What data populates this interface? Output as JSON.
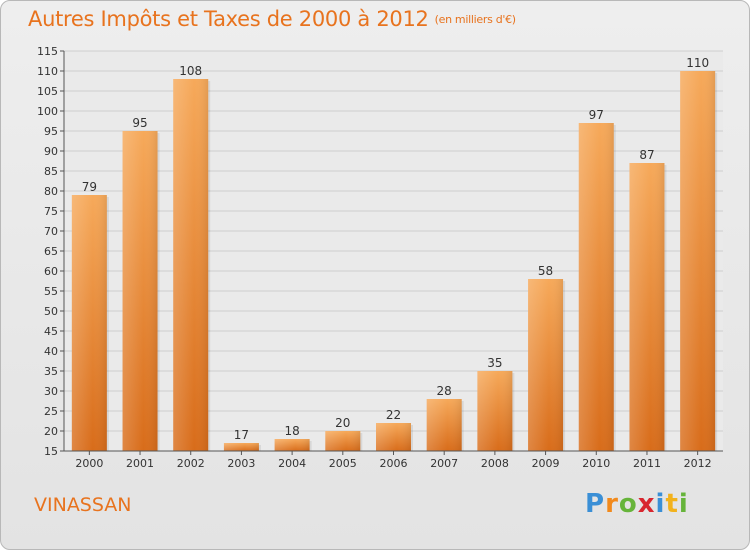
{
  "title": "Autres Impôts et Taxes de 2000 à 2012",
  "unit_note": "(en milliers d'€)",
  "commune": "VINASSAN",
  "logo": {
    "letters": [
      "P",
      "r",
      "o",
      "x",
      "i",
      "t",
      "i"
    ],
    "colors": [
      "#3a8fd6",
      "#f28a1c",
      "#66b43a",
      "#d8262f",
      "#3a8fd6",
      "#f2b21c",
      "#66b43a"
    ]
  },
  "colors": {
    "accent": "#e8731e",
    "bar_top": "#f6a95a",
    "bar_bottom": "#d86c1a"
  },
  "chart_data": {
    "type": "bar",
    "categories": [
      "2000",
      "2001",
      "2002",
      "2003",
      "2004",
      "2005",
      "2006",
      "2007",
      "2008",
      "2009",
      "2010",
      "2011",
      "2012"
    ],
    "values": [
      79,
      95,
      108,
      17,
      18,
      20,
      22,
      28,
      35,
      58,
      97,
      87,
      110
    ],
    "ylim": [
      15,
      115
    ],
    "yticks": [
      "15",
      "20",
      "25",
      "30",
      "35",
      "40",
      "45",
      "50",
      "55",
      "60",
      "65",
      "70",
      "75",
      "80",
      "85",
      "90",
      "95",
      "100",
      "105",
      "110",
      "115"
    ],
    "grid": true,
    "xlabel": "",
    "ylabel": ""
  }
}
